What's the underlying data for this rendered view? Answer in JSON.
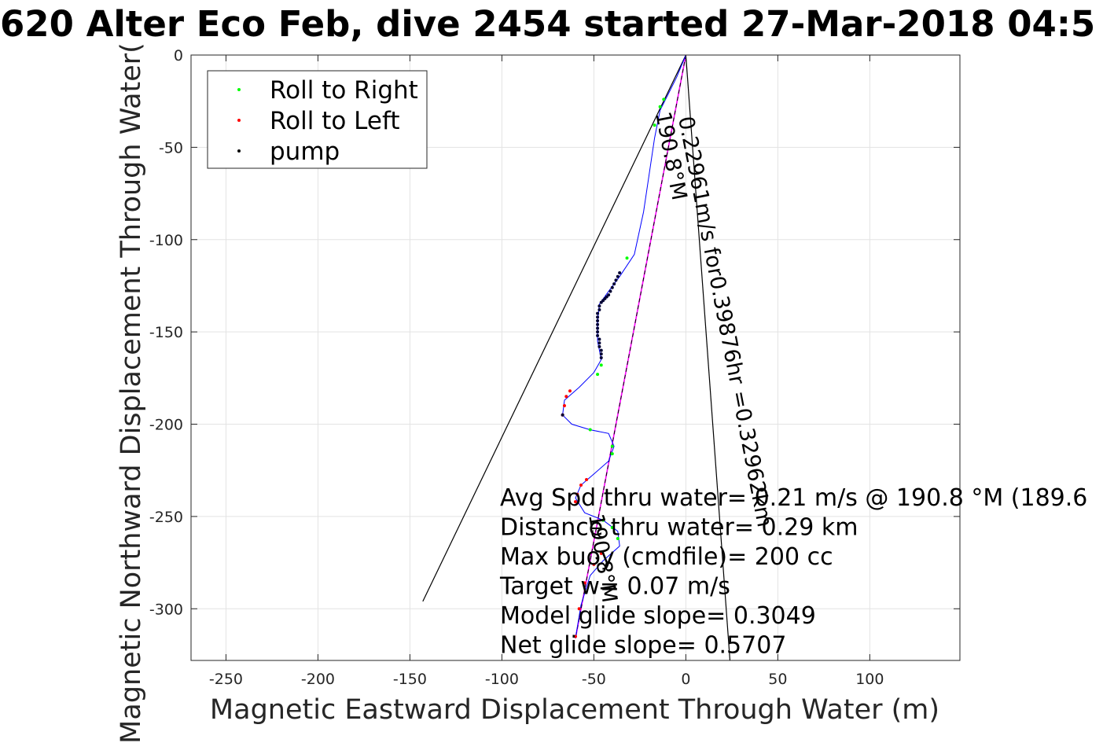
{
  "chart_data": {
    "type": "line",
    "title": "620 Alter Eco Feb, dive 2454 started 27-Mar-2018 04:5",
    "xlabel": "Magnetic Eastward Displacement Through Water (m)",
    "ylabel": "Magnetic Northward Displacement Through Water(",
    "xlim": [
      -269,
      149
    ],
    "ylim": [
      -328,
      0
    ],
    "xticks": [
      -250,
      -200,
      -150,
      -100,
      -50,
      0,
      50,
      100
    ],
    "xtick_labels": [
      "-250",
      "-200",
      "-150",
      "-100",
      "-50",
      "0",
      "50",
      "100"
    ],
    "yticks": [
      0,
      -50,
      -100,
      -150,
      -200,
      -250,
      -300
    ],
    "ytick_labels": [
      "0",
      "-50",
      "-100",
      "-150",
      "-200",
      "-250",
      "-300"
    ],
    "grid": true,
    "legend_position": "top-left",
    "legend": [
      {
        "label": "Roll to Right",
        "color": "#00ff00"
      },
      {
        "label": "Roll to Left",
        "color": "#ff0000"
      },
      {
        "label": "pump",
        "color": "#000000"
      }
    ],
    "track": {
      "color": "#0000ff",
      "points": [
        [
          0,
          0
        ],
        [
          -5,
          -12
        ],
        [
          -10,
          -22
        ],
        [
          -14,
          -30
        ],
        [
          -17,
          -45
        ],
        [
          -20,
          -65
        ],
        [
          -23,
          -85
        ],
        [
          -28,
          -108
        ],
        [
          -36,
          -120
        ],
        [
          -42,
          -128
        ],
        [
          -47,
          -135
        ],
        [
          -48,
          -145
        ],
        [
          -48,
          -155
        ],
        [
          -46,
          -165
        ],
        [
          -50,
          -172
        ],
        [
          -58,
          -180
        ],
        [
          -66,
          -187
        ],
        [
          -67,
          -195
        ],
        [
          -62,
          -200
        ],
        [
          -52,
          -203
        ],
        [
          -42,
          -205
        ],
        [
          -39,
          -212
        ],
        [
          -42,
          -220
        ],
        [
          -50,
          -227
        ],
        [
          -57,
          -233
        ],
        [
          -60,
          -240
        ],
        [
          -55,
          -248
        ],
        [
          -45,
          -252
        ],
        [
          -37,
          -258
        ],
        [
          -36,
          -266
        ],
        [
          -45,
          -274
        ],
        [
          -52,
          -282
        ],
        [
          -57,
          -298
        ],
        [
          -60,
          -316
        ]
      ]
    },
    "markers": {
      "roll_right": [
        [
          -12,
          -24
        ],
        [
          -14,
          -28
        ],
        [
          -17,
          -38
        ],
        [
          -32,
          -110
        ],
        [
          -46,
          -168
        ],
        [
          -48,
          -173
        ],
        [
          -52,
          -203
        ],
        [
          -40,
          -212
        ],
        [
          -40,
          -216
        ],
        [
          -45,
          -252
        ],
        [
          -40,
          -256
        ],
        [
          -37,
          -262
        ]
      ],
      "roll_left": [
        [
          -63,
          -182
        ],
        [
          -65,
          -185
        ],
        [
          -66,
          -190
        ],
        [
          -67,
          -195
        ],
        [
          -54,
          -230
        ],
        [
          -57,
          -233
        ],
        [
          -59,
          -238
        ],
        [
          -60,
          -242
        ],
        [
          -46,
          -270
        ],
        [
          -50,
          -276
        ],
        [
          -55,
          -286
        ],
        [
          -58,
          -300
        ],
        [
          -60,
          -315
        ]
      ],
      "pump": [
        [
          -36,
          -118
        ],
        [
          -37,
          -120
        ],
        [
          -38,
          -122
        ],
        [
          -39,
          -124
        ],
        [
          -40,
          -126
        ],
        [
          -41,
          -128
        ],
        [
          -42,
          -130
        ],
        [
          -43,
          -131
        ],
        [
          -44,
          -132
        ],
        [
          -45,
          -133
        ],
        [
          -46,
          -134
        ],
        [
          -47,
          -136
        ],
        [
          -47,
          -138
        ],
        [
          -48,
          -140
        ],
        [
          -48,
          -142
        ],
        [
          -48,
          -144
        ],
        [
          -48,
          -146
        ],
        [
          -48,
          -148
        ],
        [
          -48,
          -150
        ],
        [
          -48,
          -152
        ],
        [
          -47,
          -154
        ],
        [
          -47,
          -156
        ],
        [
          -47,
          -158
        ],
        [
          -46,
          -160
        ],
        [
          -46,
          -162
        ],
        [
          -46,
          -164
        ],
        [
          -67,
          -195
        ]
      ]
    },
    "lines": {
      "net_track_line": [
        [
          0,
          0
        ],
        [
          -60,
          -316
        ]
      ],
      "net_track_color": "#ff00ff",
      "fan_left": [
        [
          0,
          0
        ],
        [
          -143,
          -296
        ]
      ],
      "fan_right": [
        [
          0,
          0
        ],
        [
          24,
          -328
        ]
      ],
      "fan_color": "#000000"
    },
    "onplot_labels": {
      "speed_label": "0.22961m/s for0.39876hr =0.32962km",
      "heading_label": "190.8°M",
      "small_heading_label": "190.8°M"
    },
    "annotations": [
      "Avg Spd thru water=  0.21 m/s @ 190.8 °M (189.6",
      "Distance thru water=  0.29 km",
      "Max buoy (cmdfile)= 200 cc",
      "Target w= 0.07 m/s",
      "Model glide slope= 0.3049",
      "Net glide slope= 0.5707"
    ]
  }
}
